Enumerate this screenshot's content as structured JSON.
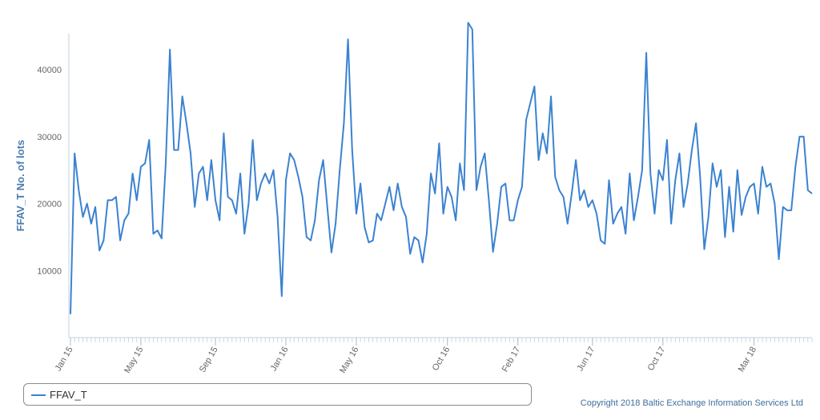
{
  "chart_data": {
    "type": "line",
    "title": "",
    "xlabel": "",
    "ylabel": "FFAV_T No. of lots",
    "ylim": [
      0,
      48000
    ],
    "y_ticks": [
      10000,
      20000,
      30000,
      40000
    ],
    "x_tick_labels": [
      "Jan 15",
      "May 15",
      "Sep 15",
      "Jan 16",
      "May 16",
      "Oct 16",
      "Feb 17",
      "Jun 17",
      "Oct 17",
      "Mar 18"
    ],
    "x_tick_weeks": [
      0,
      17,
      35,
      52,
      69,
      91,
      108,
      126,
      143,
      165
    ],
    "grid": false,
    "legend_position": "bottom",
    "series": [
      {
        "name": "FFAV_T",
        "color": "#3b82d1",
        "values": [
          3500,
          27500,
          22000,
          18000,
          20000,
          17000,
          19500,
          13000,
          14500,
          20500,
          20500,
          21000,
          14500,
          17500,
          18500,
          24500,
          20500,
          25500,
          26000,
          29500,
          15500,
          16000,
          14800,
          26000,
          43000,
          28000,
          28000,
          36000,
          32000,
          27500,
          19500,
          24500,
          25500,
          20500,
          26500,
          20500,
          17500,
          30500,
          21000,
          20500,
          18500,
          24500,
          15500,
          20000,
          29500,
          20500,
          23000,
          24500,
          23000,
          25000,
          18000,
          6200,
          23500,
          27500,
          26500,
          24000,
          21000,
          15000,
          14500,
          17500,
          23500,
          26500,
          19500,
          12700,
          17000,
          25000,
          32000,
          44500,
          28000,
          18500,
          23000,
          16500,
          14200,
          14500,
          18500,
          17500,
          20000,
          22500,
          19000,
          23000,
          19500,
          18000,
          12500,
          15000,
          14500,
          11200,
          15500,
          24500,
          21500,
          29000,
          18500,
          22500,
          21000,
          17500,
          26000,
          22000,
          47000,
          46000,
          22000,
          25500,
          27500,
          20500,
          12800,
          17000,
          22500,
          23000,
          17500,
          17500,
          20500,
          22500,
          32500,
          35000,
          37500,
          26500,
          30500,
          27500,
          36000,
          24000,
          22000,
          21000,
          17000,
          21500,
          26500,
          20500,
          22000,
          19500,
          20500,
          18500,
          14500,
          14000,
          23500,
          17000,
          18500,
          19500,
          15500,
          24500,
          17500,
          21000,
          25000,
          42500,
          24500,
          18500,
          25000,
          23500,
          29500,
          17000,
          23500,
          27500,
          19500,
          23000,
          28000,
          32000,
          24000,
          13200,
          18000,
          26000,
          22500,
          25000,
          15000,
          22500,
          15800,
          25000,
          18300,
          21000,
          22500,
          23000,
          18500,
          25500,
          22500,
          23000,
          20000,
          11700,
          19500,
          19000,
          19000,
          25500,
          30000,
          30000,
          22000,
          21500
        ]
      }
    ]
  },
  "legend": {
    "items": [
      {
        "label": "FFAV_T",
        "color": "#3b82d1"
      }
    ]
  },
  "footer": {
    "copyright": "Copyright 2018 Baltic Exchange Information Services Ltd"
  },
  "colors": {
    "axis_title": "#4a7ab0",
    "axis_line": "#c0d0e0",
    "tick_label": "#666666"
  }
}
